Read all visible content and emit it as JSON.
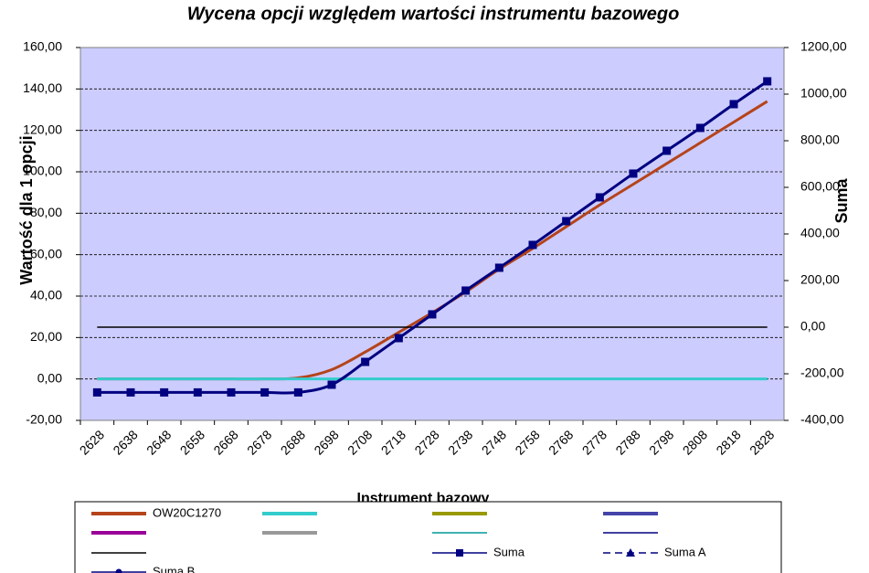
{
  "chart_data": {
    "type": "line",
    "title": "Wycena opcji względem wartości instrumentu bazowego",
    "x_label": "Instrument bazowy",
    "y_label": "Wartość dla 1 opcji",
    "y2_label": "Suma",
    "categories": [
      "2628",
      "2638",
      "2648",
      "2658",
      "2668",
      "2678",
      "2688",
      "2698",
      "2708",
      "2718",
      "2728",
      "2738",
      "2748",
      "2758",
      "2768",
      "2778",
      "2788",
      "2798",
      "2808",
      "2818",
      "2828"
    ],
    "ylim": [
      -20,
      160
    ],
    "yticks": [
      {
        "value": -20,
        "label": "-20,00"
      },
      {
        "value": 0,
        "label": "0,00"
      },
      {
        "value": 20,
        "label": "20,00"
      },
      {
        "value": 40,
        "label": "40,00"
      },
      {
        "value": 60,
        "label": "60,00"
      },
      {
        "value": 80,
        "label": "80,00"
      },
      {
        "value": 100,
        "label": "100,00"
      },
      {
        "value": 120,
        "label": "120,00"
      },
      {
        "value": 140,
        "label": "140,00"
      },
      {
        "value": 160,
        "label": "160,00"
      }
    ],
    "y2lim": [
      -400,
      1200
    ],
    "y2ticks": [
      {
        "value": -400,
        "label": "-400,00"
      },
      {
        "value": -200,
        "label": "-200,00"
      },
      {
        "value": 0,
        "label": "0,00"
      },
      {
        "value": 200,
        "label": "200,00"
      },
      {
        "value": 400,
        "label": "400,00"
      },
      {
        "value": 600,
        "label": "600,00"
      },
      {
        "value": 800,
        "label": "800,00"
      },
      {
        "value": 1000,
        "label": "1000,00"
      },
      {
        "value": 1200,
        "label": "1200,00"
      }
    ],
    "grid": true,
    "background": "#ccccff",
    "series": [
      {
        "name": "OW20C1270",
        "color": "#b5441a",
        "values": [
          0,
          0,
          0,
          0,
          0,
          0,
          0.5,
          4.5,
          13,
          22.5,
          32,
          42,
          53,
          63,
          73.5,
          84,
          94,
          104,
          114,
          124,
          134
        ]
      },
      {
        "color": "#33cccc",
        "values": [
          0,
          0,
          0,
          0,
          0,
          0,
          0,
          0,
          0,
          0,
          0,
          0,
          0,
          0,
          0,
          0,
          0,
          0,
          0,
          0,
          0
        ]
      },
      {
        "color": "#000000",
        "axis": "y2",
        "values": [
          0,
          0,
          0,
          0,
          0,
          0,
          0,
          0,
          0,
          0,
          0,
          0,
          0,
          0,
          0,
          0,
          0,
          0,
          0,
          0,
          0
        ]
      },
      {
        "name": "Suma",
        "color": "#000080",
        "axis": "y2",
        "marker": "square",
        "values": [
          -280,
          -280,
          -280,
          -280,
          -280,
          -280,
          -280,
          -247,
          -149,
          -47,
          55,
          157,
          255,
          353,
          455,
          557,
          659,
          757,
          855,
          957,
          1055
        ]
      },
      {
        "name": "Suma A",
        "color": "#000080",
        "marker": "triangle"
      },
      {
        "name": "Suma B",
        "color": "#000080",
        "marker": "circle"
      }
    ]
  }
}
